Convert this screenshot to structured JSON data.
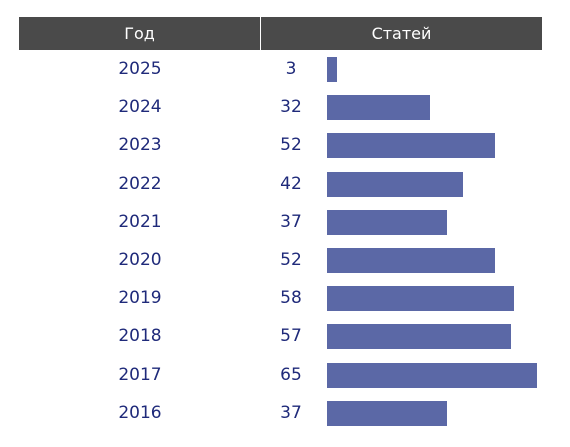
{
  "table": {
    "header": {
      "year": "Год",
      "count": "Статей"
    }
  },
  "chart_data": {
    "type": "bar",
    "orientation": "horizontal",
    "categories": [
      "2025",
      "2024",
      "2023",
      "2022",
      "2021",
      "2020",
      "2019",
      "2018",
      "2017",
      "2016"
    ],
    "values": [
      3,
      32,
      52,
      42,
      37,
      52,
      58,
      57,
      65,
      37
    ],
    "xlim": [
      0,
      65
    ],
    "grid": false,
    "bar_color": "#5b68a6",
    "header_bg": "#4a4a4a",
    "text_color": "#1f2a7a"
  }
}
